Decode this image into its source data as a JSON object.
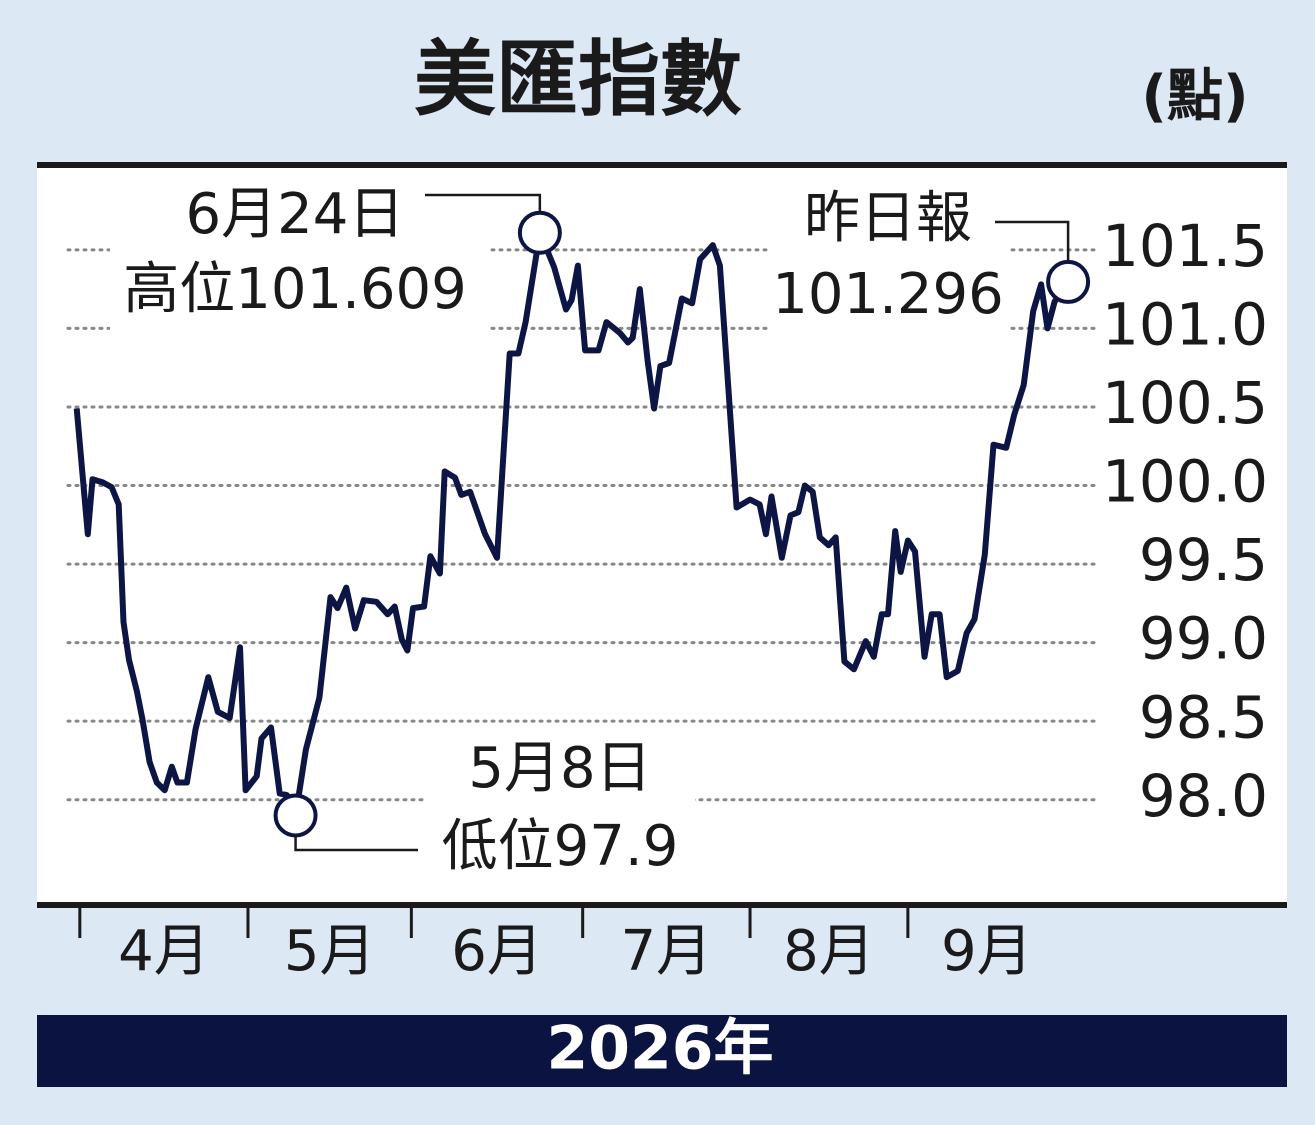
{
  "chart_data": {
    "type": "line",
    "title": "美匯指數",
    "unit": "(點)",
    "footer": "2026年",
    "color": "#0d1545",
    "x": [
      0,
      1.4,
      2.0,
      3.3,
      4.4,
      5.3,
      5.9,
      6.6,
      7.6,
      8.3,
      9.2,
      10.1,
      11.1,
      12.0,
      12.7,
      13.9,
      15.0,
      16.6,
      17.8,
      19.3,
      20.6,
      21.3,
      22.7,
      23.3,
      24.5,
      25.6,
      26.5,
      27.6,
      28.9,
      30.6,
      32.0,
      32.9,
      34.0,
      35.1,
      36.2,
      37.8,
      39.2,
      40.1,
      41.0,
      41.7,
      42.4,
      43.8,
      44.6,
      45.8,
      46.4,
      47.7,
      48.5,
      49.6,
      51.5,
      53.0,
      54.6,
      55.7,
      56.6,
      58.4,
      60.2,
      61.7,
      62.4,
      63.2,
      64.1,
      65.8,
      66.8,
      68.5,
      69.5,
      70.1,
      71.0,
      72.0,
      72.8,
      73.6,
      74.7,
      76.3,
      77.6,
      78.6,
      80.2,
      81.1,
      83.2,
      84.9,
      86.1,
      86.9,
      87.6,
      88.9,
      90.0,
      91.0,
      91.8,
      92.8,
      93.7,
      94.8,
      95.7,
      96.8,
      98.0,
      99.5,
      100.5,
      101.5,
      102.3,
      103.2,
      103.9,
      104.8,
      105.7,
      106.9,
      107.8,
      108.8,
      109.7,
      111.1,
      112.2,
      113.2,
      114.5,
      115.6,
      117.2,
      118.2,
      119.4,
      120.6,
      121.6,
      122.4,
      123.3,
      125.0
    ],
    "values": [
      100.49,
      99.69,
      100.04,
      100.02,
      99.99,
      99.88,
      99.13,
      98.89,
      98.69,
      98.51,
      98.24,
      98.11,
      98.06,
      98.21,
      98.11,
      98.11,
      98.45,
      98.78,
      98.56,
      98.52,
      98.97,
      98.06,
      98.15,
      98.39,
      98.46,
      98.04,
      98.03,
      97.9,
      98.32,
      98.65,
      99.29,
      99.22,
      99.35,
      99.09,
      99.27,
      99.26,
      99.18,
      99.23,
      99.02,
      98.95,
      99.22,
      99.23,
      99.55,
      99.44,
      100.09,
      100.05,
      99.94,
      99.96,
      99.69,
      99.54,
      100.84,
      100.84,
      101.04,
      101.609,
      101.39,
      101.12,
      101.18,
      101.4,
      100.86,
      100.86,
      101.04,
      100.97,
      100.91,
      100.94,
      101.25,
      100.79,
      100.49,
      100.76,
      100.78,
      101.19,
      101.16,
      101.44,
      101.53,
      101.4,
      99.86,
      99.91,
      99.88,
      99.69,
      99.93,
      99.54,
      99.81,
      99.83,
      100.0,
      99.96,
      99.67,
      99.62,
      99.67,
      98.88,
      98.83,
      99.01,
      98.91,
      99.18,
      99.18,
      99.71,
      99.45,
      99.65,
      99.58,
      98.91,
      99.18,
      99.18,
      98.78,
      98.82,
      99.06,
      99.15,
      99.56,
      100.26,
      100.24,
      100.45,
      100.64,
      101.11,
      101.28,
      101.0,
      101.17,
      101.296
    ],
    "xlim": [
      -5,
      152.6
    ],
    "xticks": [
      {
        "value": 0.4,
        "label": "4月"
      },
      {
        "value": 21.6,
        "label": "5月"
      },
      {
        "value": 42.2,
        "label": "6月"
      },
      {
        "value": 63.8,
        "label": "7月"
      },
      {
        "value": 84.9,
        "label": "8月"
      },
      {
        "value": 104.8,
        "label": "9月"
      }
    ],
    "ylim": [
      97.33,
      102.04
    ],
    "yticks": [
      {
        "value": 98,
        "label": "98.0"
      },
      98.5,
      {
        "value": 99,
        "label": "99.0"
      },
      99.5,
      {
        "value": 100,
        "label": "100.0"
      },
      100.5,
      {
        "value": 101,
        "label": "101.0"
      },
      101.5
    ],
    "grid": true,
    "annotations": [
      {
        "lines": [
          "6月24日",
          "高位101.609"
        ],
        "x": 58.4
      },
      {
        "lines": [
          "5月8日",
          "低位97.9"
        ],
        "x": 27.6
      },
      {
        "lines": [
          "昨日報",
          "101.296"
        ],
        "x": 125.0
      }
    ]
  }
}
